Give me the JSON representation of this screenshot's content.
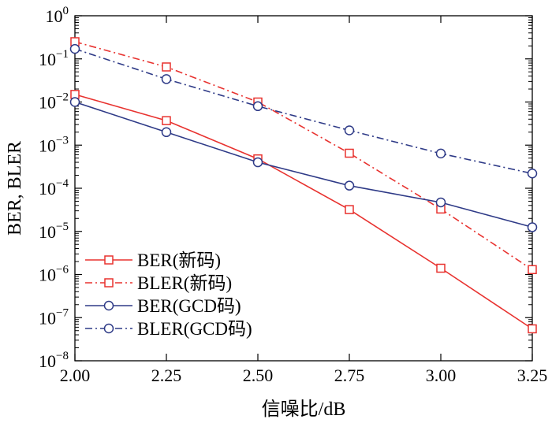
{
  "chart_data": {
    "type": "line",
    "x": [
      2.0,
      2.25,
      2.5,
      2.75,
      3.0,
      3.25
    ],
    "x_tick_labels": [
      "2.00",
      "2.25",
      "2.50",
      "2.75",
      "3.00",
      "3.25"
    ],
    "xlim": [
      2.0,
      3.25
    ],
    "ylim": [
      1e-08,
      1
    ],
    "yscale": "log",
    "y_tick_exponents": [
      0,
      -1,
      -2,
      -3,
      -4,
      -5,
      -6,
      -7,
      -8
    ],
    "xlabel": "信噪比/dB",
    "ylabel": "BER, BLER",
    "legend_position": "lower-left",
    "series": [
      {
        "name": "BER(新码)",
        "color": "#e8322f",
        "marker": "square",
        "linestyle": "solid",
        "values": [
          0.015,
          0.0037,
          0.00048,
          3.2e-05,
          1.4e-06,
          5.5e-08
        ]
      },
      {
        "name": "BLER(新码)",
        "color": "#e8322f",
        "marker": "square",
        "linestyle": "dashdot",
        "values": [
          0.25,
          0.065,
          0.01,
          0.00065,
          3.3e-05,
          1.3e-06
        ]
      },
      {
        "name": "BER(GCD码)",
        "color": "#2e3a87",
        "marker": "circle",
        "linestyle": "solid",
        "values": [
          0.01,
          0.002,
          0.0004,
          0.000115,
          4.7e-05,
          1.25e-05
        ]
      },
      {
        "name": "BLER(GCD码)",
        "color": "#2e3a87",
        "marker": "circle",
        "linestyle": "dashdot",
        "values": [
          0.17,
          0.034,
          0.008,
          0.0022,
          0.00064,
          0.00022
        ]
      }
    ]
  }
}
